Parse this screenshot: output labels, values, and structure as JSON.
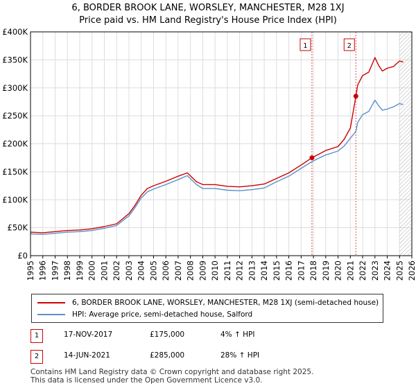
{
  "chart_data": {
    "type": "line",
    "title": "6, BORDER BROOK LANE, WORSLEY, MANCHESTER, M28 1XJ",
    "subtitle": "Price paid vs. HM Land Registry's House Price Index (HPI)",
    "xlim": [
      1995,
      2026
    ],
    "ylim": [
      0,
      400000
    ],
    "x_ticks": [
      1995,
      1996,
      1997,
      1998,
      1999,
      2000,
      2001,
      2002,
      2003,
      2004,
      2005,
      2006,
      2007,
      2008,
      2009,
      2010,
      2011,
      2012,
      2013,
      2014,
      2015,
      2016,
      2017,
      2018,
      2019,
      2020,
      2021,
      2022,
      2023,
      2024,
      2025,
      2026
    ],
    "y_ticks": [
      {
        "value": 0,
        "label": "£0"
      },
      {
        "value": 50000,
        "label": "£50K"
      },
      {
        "value": 100000,
        "label": "£100K"
      },
      {
        "value": 150000,
        "label": "£150K"
      },
      {
        "value": 200000,
        "label": "£200K"
      },
      {
        "value": 250000,
        "label": "£250K"
      },
      {
        "value": 300000,
        "label": "£300K"
      },
      {
        "value": 350000,
        "label": "£350K"
      },
      {
        "value": 400000,
        "label": "£400K"
      }
    ],
    "grid": true,
    "series": [
      {
        "name": "6, BORDER BROOK LANE, WORSLEY, MANCHESTER, M28 1XJ (semi-detached house)",
        "color": "#cc0000",
        "x": [
          1995,
          1996,
          1997,
          1998,
          1999,
          2000,
          2001,
          2002,
          2003,
          2003.5,
          2004,
          2004.5,
          2005,
          2006,
          2007,
          2007.75,
          2008.5,
          2009,
          2010,
          2011,
          2012,
          2013,
          2014,
          2015,
          2016,
          2017,
          2017.88,
          2018.5,
          2019,
          2020,
          2020.5,
          2021,
          2021.45,
          2021.6,
          2022,
          2022.5,
          2023,
          2023.3,
          2023.6,
          2024,
          2024.5,
          2025,
          2025.3
        ],
        "y": [
          42000,
          41000,
          43000,
          45000,
          46000,
          48000,
          52000,
          57000,
          75000,
          90000,
          108000,
          120000,
          125000,
          133000,
          142000,
          148000,
          132000,
          127000,
          127000,
          124000,
          123000,
          125000,
          128000,
          138000,
          148000,
          162000,
          175000,
          182000,
          188000,
          195000,
          208000,
          228000,
          285000,
          305000,
          322000,
          328000,
          354000,
          340000,
          330000,
          335000,
          338000,
          348000,
          346000
        ]
      },
      {
        "name": "HPI: Average price, semi-detached house, Salford",
        "color": "#5b8fc9",
        "x": [
          1995,
          1996,
          1997,
          1998,
          1999,
          2000,
          2001,
          2002,
          2003,
          2003.5,
          2004,
          2004.5,
          2005,
          2006,
          2007,
          2007.75,
          2008.5,
          2009,
          2010,
          2011,
          2012,
          2013,
          2014,
          2015,
          2016,
          2017,
          2017.88,
          2018.5,
          2019,
          2020,
          2020.5,
          2021,
          2021.45,
          2021.6,
          2022,
          2022.5,
          2023,
          2023.3,
          2023.6,
          2024,
          2024.5,
          2025,
          2025.3
        ],
        "y": [
          39000,
          38000,
          40000,
          42000,
          43000,
          45000,
          49000,
          54000,
          71000,
          86000,
          103000,
          114000,
          119000,
          127000,
          136000,
          143000,
          127000,
          120000,
          120000,
          117000,
          116000,
          118000,
          121000,
          132000,
          142000,
          156000,
          168000,
          175000,
          180000,
          187000,
          196000,
          210000,
          222000,
          238000,
          252000,
          258000,
          278000,
          268000,
          260000,
          262000,
          266000,
          272000,
          270000
        ]
      }
    ],
    "sales": [
      {
        "label": "1",
        "x": 2017.88,
        "y": 175000
      },
      {
        "label": "2",
        "x": 2021.45,
        "y": 285000
      }
    ],
    "hatched_region_start": 2025.0
  },
  "legend": {
    "property_label": "6, BORDER BROOK LANE, WORSLEY, MANCHESTER, M28 1XJ (semi-detached house)",
    "hpi_label": "HPI: Average price, semi-detached house, Salford"
  },
  "sales_table": [
    {
      "num": "1",
      "date": "17-NOV-2017",
      "price": "£175,000",
      "hpi": "4% ↑ HPI"
    },
    {
      "num": "2",
      "date": "14-JUN-2021",
      "price": "£285,000",
      "hpi": "28% ↑ HPI"
    }
  ],
  "footer": {
    "line1": "Contains HM Land Registry data © Crown copyright and database right 2025.",
    "line2": "This data is licensed under the Open Government Licence v3.0."
  },
  "colors": {
    "property": "#cc0000",
    "hpi": "#5b8fc9",
    "grid": "#dddddd"
  }
}
